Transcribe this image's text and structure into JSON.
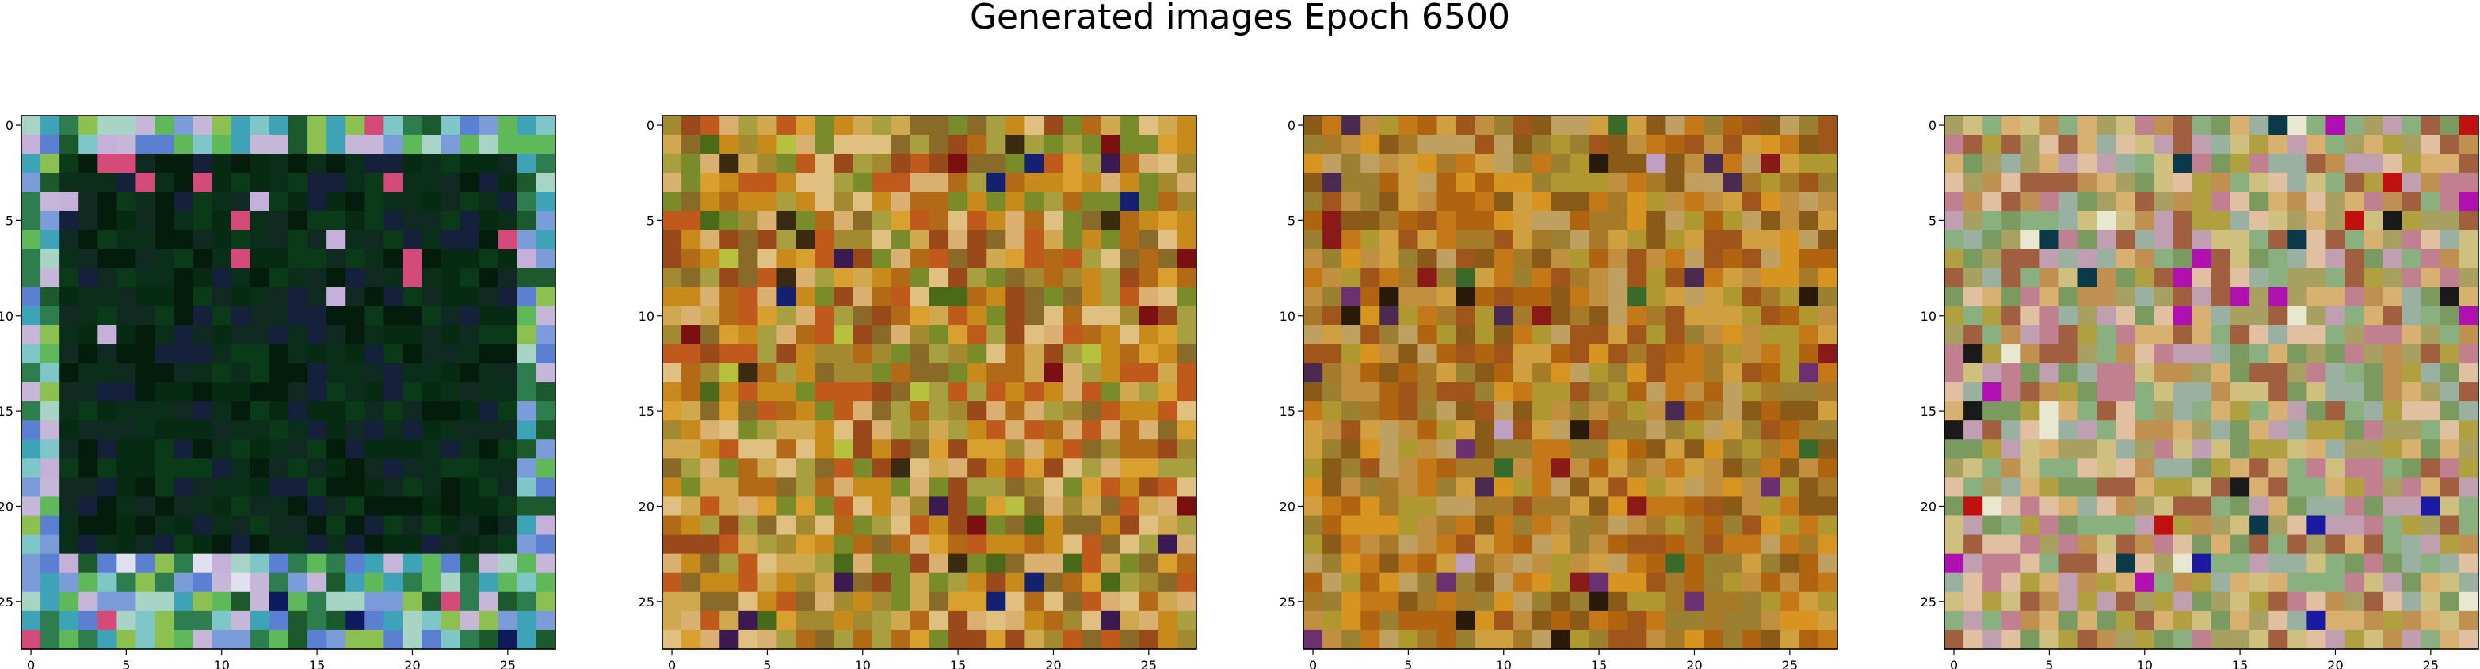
{
  "figure": {
    "title": "Generated images Epoch 6500"
  },
  "chart_data": [
    {
      "type": "heatmap",
      "grid_size": [
        28,
        28
      ],
      "xlim": [
        -0.5,
        27.5
      ],
      "ylim": [
        27.5,
        -0.5
      ],
      "x_ticks": [
        0,
        5,
        10,
        15,
        20,
        25
      ],
      "y_ticks": [
        0,
        5,
        10,
        15,
        20,
        25
      ],
      "palette": [
        "#3fa3b8",
        "#7ec6c8",
        "#a7d4c4",
        "#c6b7d8",
        "#7c9cd9",
        "#5b7fd1",
        "#5fb85a",
        "#8cc152",
        "#2e7d4f",
        "#1c5a2e"
      ],
      "inner_palette": [
        "#062a12",
        "#0a3a18",
        "#041c0c",
        "#0b2e1a",
        "#15203a",
        "#102a22"
      ],
      "accent_palette": [
        "#d44a78",
        "#0d1a5c",
        "#c4b0d8",
        "#e0e0f0"
      ],
      "inner_box": [
        2,
        2,
        25,
        22
      ],
      "seed": 11
    },
    {
      "type": "heatmap",
      "grid_size": [
        28,
        28
      ],
      "xlim": [
        -0.5,
        27.5
      ],
      "ylim": [
        27.5,
        -0.5
      ],
      "x_ticks": [
        0,
        5,
        10,
        15,
        20,
        25
      ],
      "y_ticks": [
        0,
        5,
        10,
        15,
        20,
        25
      ],
      "palette": [
        "#c98a1c",
        "#b36a16",
        "#d9a030",
        "#8a6a28",
        "#a38a30",
        "#cfa850",
        "#9a4a1a",
        "#7a8c2a",
        "#d9b070",
        "#c05a1c",
        "#a8a040",
        "#e0c080"
      ],
      "accent_palette": [
        "#3a1a50",
        "#142070",
        "#7a1010",
        "#b8c040",
        "#4a6a1a",
        "#3a2a10"
      ],
      "seed": 23
    },
    {
      "type": "heatmap",
      "grid_size": [
        28,
        28
      ],
      "xlim": [
        -0.5,
        27.5
      ],
      "ylim": [
        27.5,
        -0.5
      ],
      "x_ticks": [
        0,
        5,
        10,
        15,
        20,
        25
      ],
      "y_ticks": [
        0,
        5,
        10,
        15,
        20,
        25
      ],
      "palette": [
        "#c47818",
        "#b06410",
        "#d89420",
        "#a67a28",
        "#9a8030",
        "#c09040",
        "#8a5a18",
        "#b09830",
        "#d0a040",
        "#a0561a",
        "#bfa060"
      ],
      "accent_palette": [
        "#2a1a0a",
        "#4a2a50",
        "#6a3070",
        "#8a1a18",
        "#3a6a2a",
        "#c0a0c0"
      ],
      "seed": 37
    },
    {
      "type": "heatmap",
      "grid_size": [
        28,
        28
      ],
      "xlim": [
        -0.5,
        27.5
      ],
      "ylim": [
        27.5,
        -0.5
      ],
      "x_ticks": [
        0,
        5,
        10,
        15,
        20,
        25
      ],
      "y_ticks": [
        0,
        5,
        10,
        15,
        20,
        25
      ],
      "palette": [
        "#c09050",
        "#a8a060",
        "#d8b070",
        "#8ab080",
        "#c08090",
        "#b0a040",
        "#9ab0a0",
        "#d0c080",
        "#a06040",
        "#c0a0b0",
        "#7a9a60",
        "#e0c0a0"
      ],
      "accent_palette": [
        "#1a1aa0",
        "#b010b0",
        "#c01010",
        "#0a3a4a",
        "#e8e8d0",
        "#1a1a1a"
      ],
      "seed": 53
    }
  ]
}
